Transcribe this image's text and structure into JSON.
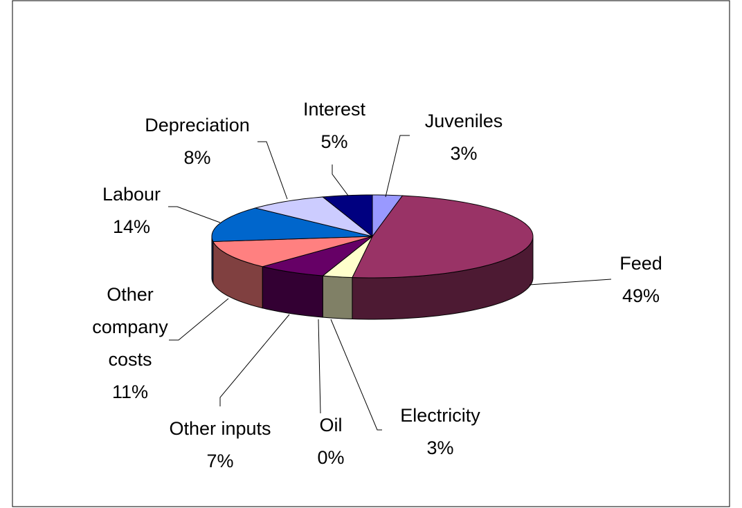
{
  "chart_data": {
    "type": "pie",
    "categories": [
      "Juveniles",
      "Feed",
      "Electricity",
      "Oil",
      "Other inputs",
      "Other company costs",
      "Labour",
      "Depreciation",
      "Interest"
    ],
    "values": [
      3,
      49,
      3,
      0,
      7,
      11,
      14,
      8,
      5
    ],
    "value_labels": [
      "3%",
      "49%",
      "3%",
      "0%",
      "7%",
      "11%",
      "14%",
      "8%",
      "5%"
    ],
    "colors": [
      "#9999ff",
      "#993366",
      "#ffffcc",
      "#ccffff",
      "#660066",
      "#ff8080",
      "#0066cc",
      "#ccccff",
      "#000080"
    ]
  }
}
